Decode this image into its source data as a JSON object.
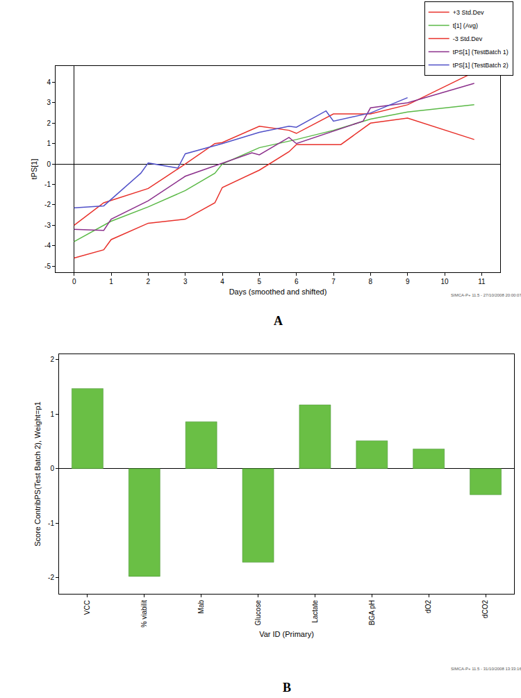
{
  "chart_data": [
    {
      "type": "line",
      "label": "A",
      "footnote": "SIMCA-P+ 11.5 - 27/10/2008 20:00:07",
      "x_label": "Days (smoothed and shifted)",
      "y_label": "tPS[1]",
      "xlim": [
        -0.5,
        11.5
      ],
      "xticks": [
        0,
        1,
        2,
        3,
        4,
        5,
        6,
        7,
        8,
        9,
        10,
        11
      ],
      "ylim": [
        -5.3,
        4.8
      ],
      "yticks": [
        -5,
        -4,
        -3,
        -2,
        -1,
        0,
        1,
        2,
        3,
        4
      ],
      "grid": false,
      "legend": "top right",
      "series": [
        {
          "name": "+3 Std.Dev",
          "color": "#e8302a",
          "x": [
            0,
            0.8,
            2,
            3,
            3.8,
            4,
            5,
            5.8,
            6,
            7,
            7.5,
            8,
            9,
            10.8
          ],
          "values": [
            -3.0,
            -1.9,
            -1.2,
            0.0,
            1.0,
            1.05,
            1.85,
            1.65,
            1.5,
            2.45,
            2.45,
            2.45,
            2.9,
            4.5
          ]
        },
        {
          "name": "t[1] (Avg)",
          "color": "#5ab946",
          "x": [
            0,
            1,
            2,
            3,
            3.8,
            4,
            5,
            6,
            7,
            8,
            9,
            10.8
          ],
          "values": [
            -3.8,
            -2.8,
            -2.1,
            -1.3,
            -0.45,
            0.0,
            0.8,
            1.2,
            1.65,
            2.2,
            2.55,
            2.9
          ]
        },
        {
          "name": "-3 Std.Dev",
          "color": "#e8302a",
          "x": [
            0,
            0.8,
            1,
            2,
            3,
            3.8,
            4,
            5,
            5.8,
            6,
            7.2,
            8,
            9,
            10.8
          ],
          "values": [
            -4.6,
            -4.2,
            -3.7,
            -2.9,
            -2.7,
            -1.9,
            -1.15,
            -0.3,
            0.6,
            0.95,
            0.95,
            2.0,
            2.25,
            1.2
          ]
        },
        {
          "name": "tPS[1] (TestBatch 1)",
          "color": "#8b2f8b",
          "x": [
            0,
            0.8,
            1,
            2,
            3,
            4,
            4.8,
            5,
            5.8,
            6,
            7,
            7.8,
            8,
            9,
            10.8
          ],
          "values": [
            -3.2,
            -3.25,
            -2.7,
            -1.8,
            -0.6,
            0.05,
            0.55,
            0.45,
            1.3,
            1.0,
            1.6,
            2.1,
            2.75,
            3.0,
            3.95
          ]
        },
        {
          "name": "tPS[1] (TestBatch 2)",
          "color": "#5050c8",
          "x": [
            0,
            0.8,
            1.8,
            2,
            2.8,
            3,
            4,
            5,
            5.8,
            6,
            6.8,
            7,
            8,
            9
          ],
          "values": [
            -2.15,
            -2.05,
            -0.45,
            0.05,
            -0.2,
            0.5,
            1.0,
            1.55,
            1.85,
            1.8,
            2.6,
            2.1,
            2.5,
            3.25
          ]
        }
      ]
    },
    {
      "type": "bar",
      "label": "B",
      "footnote": "SIMCA-P+ 11.5 - 31/10/2008 13:33:16",
      "x_label": "Var ID (Primary)",
      "y_label": "Score ContribPS(Test Batch 2), Weight=p1",
      "categories": [
        "VCC",
        "% viabilit",
        "Mab",
        "Glucose",
        "Lactate",
        "BGA pH",
        "dO2",
        "dCO2"
      ],
      "values": [
        1.47,
        -1.98,
        0.86,
        -1.72,
        1.17,
        0.51,
        0.36,
        -0.48
      ],
      "color": "#6abf45",
      "ylim": [
        -2.3,
        2.1
      ],
      "yticks": [
        -2,
        -1,
        0,
        1,
        2
      ],
      "grid": false
    }
  ]
}
